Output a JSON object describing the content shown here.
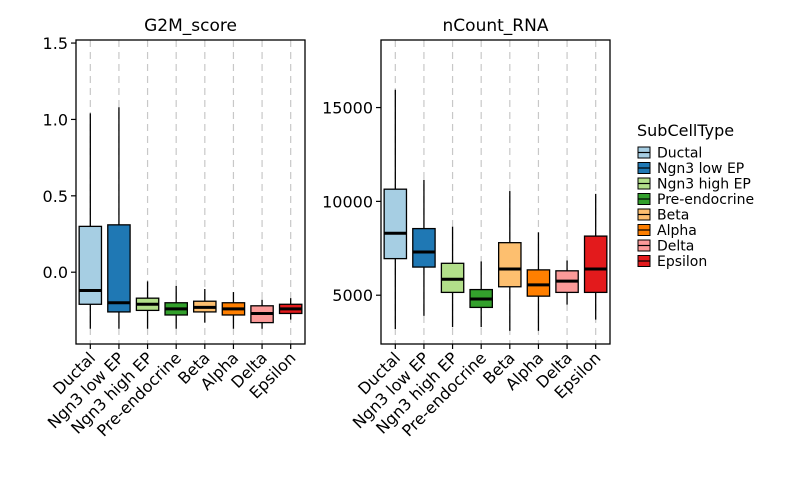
{
  "chart_data": [
    {
      "type": "box",
      "title": "G2M_score",
      "xlabel": "",
      "ylabel": "",
      "ylim": [
        -0.47,
        1.52
      ],
      "yticks": [
        0.0,
        0.5,
        1.0,
        1.5
      ],
      "ytick_labels": [
        "0.0",
        "0.5",
        "1.0",
        "1.5"
      ],
      "grid": "vertical-dashed",
      "categories": [
        "Ductal",
        "Ngn3 low EP",
        "Ngn3 high EP",
        "Pre-endocrine",
        "Beta",
        "Alpha",
        "Delta",
        "Epsilon"
      ],
      "boxes": [
        {
          "min": -0.37,
          "q1": -0.21,
          "median": -0.12,
          "q3": 0.3,
          "max": 1.04
        },
        {
          "min": -0.37,
          "q1": -0.26,
          "median": -0.2,
          "q3": 0.31,
          "max": 1.08
        },
        {
          "min": -0.37,
          "q1": -0.25,
          "median": -0.21,
          "q3": -0.17,
          "max": -0.06
        },
        {
          "min": -0.37,
          "q1": -0.28,
          "median": -0.24,
          "q3": -0.2,
          "max": -0.09
        },
        {
          "min": -0.33,
          "q1": -0.26,
          "median": -0.23,
          "q3": -0.19,
          "max": -0.11
        },
        {
          "min": -0.37,
          "q1": -0.28,
          "median": -0.24,
          "q3": -0.2,
          "max": -0.13
        },
        {
          "min": -0.37,
          "q1": -0.33,
          "median": -0.27,
          "q3": -0.22,
          "max": -0.18
        },
        {
          "min": -0.31,
          "q1": -0.27,
          "median": -0.24,
          "q3": -0.21,
          "max": -0.17
        }
      ]
    },
    {
      "type": "box",
      "title": "nCount_RNA",
      "xlabel": "",
      "ylabel": "",
      "ylim": [
        2400,
        18600
      ],
      "yticks": [
        5000,
        10000,
        15000
      ],
      "ytick_labels": [
        "5000",
        "10000",
        "15000"
      ],
      "grid": "vertical-dashed",
      "categories": [
        "Ductal",
        "Ngn3 low EP",
        "Ngn3 high EP",
        "Pre-endocrine",
        "Beta",
        "Alpha",
        "Delta",
        "Epsilon"
      ],
      "boxes": [
        {
          "min": 3200,
          "q1": 6950,
          "median": 8300,
          "q3": 10650,
          "max": 15950
        },
        {
          "min": 3900,
          "q1": 6500,
          "median": 7300,
          "q3": 8550,
          "max": 11150
        },
        {
          "min": 3300,
          "q1": 5150,
          "median": 5850,
          "q3": 6700,
          "max": 8650
        },
        {
          "min": 3300,
          "q1": 4350,
          "median": 4800,
          "q3": 5300,
          "max": 6800
        },
        {
          "min": 3100,
          "q1": 5450,
          "median": 6400,
          "q3": 7800,
          "max": 10550
        },
        {
          "min": 3100,
          "q1": 4950,
          "median": 5550,
          "q3": 6350,
          "max": 8350
        },
        {
          "min": 4500,
          "q1": 5150,
          "median": 5750,
          "q3": 6300,
          "max": 6850
        },
        {
          "min": 3700,
          "q1": 5150,
          "median": 6400,
          "q3": 8150,
          "max": 10400
        }
      ]
    }
  ],
  "legend": {
    "title": "SubCellType",
    "placement": "right",
    "items": [
      {
        "label": "Ductal",
        "color": "#a6cee3"
      },
      {
        "label": "Ngn3 low EP",
        "color": "#1f78b4"
      },
      {
        "label": "Ngn3 high EP",
        "color": "#b2df8a"
      },
      {
        "label": "Pre-endocrine",
        "color": "#33a02c"
      },
      {
        "label": "Beta",
        "color": "#fdbf6f"
      },
      {
        "label": "Alpha",
        "color": "#ff7f00"
      },
      {
        "label": "Delta",
        "color": "#fb9a99"
      },
      {
        "label": "Epsilon",
        "color": "#e31a1c"
      }
    ]
  }
}
